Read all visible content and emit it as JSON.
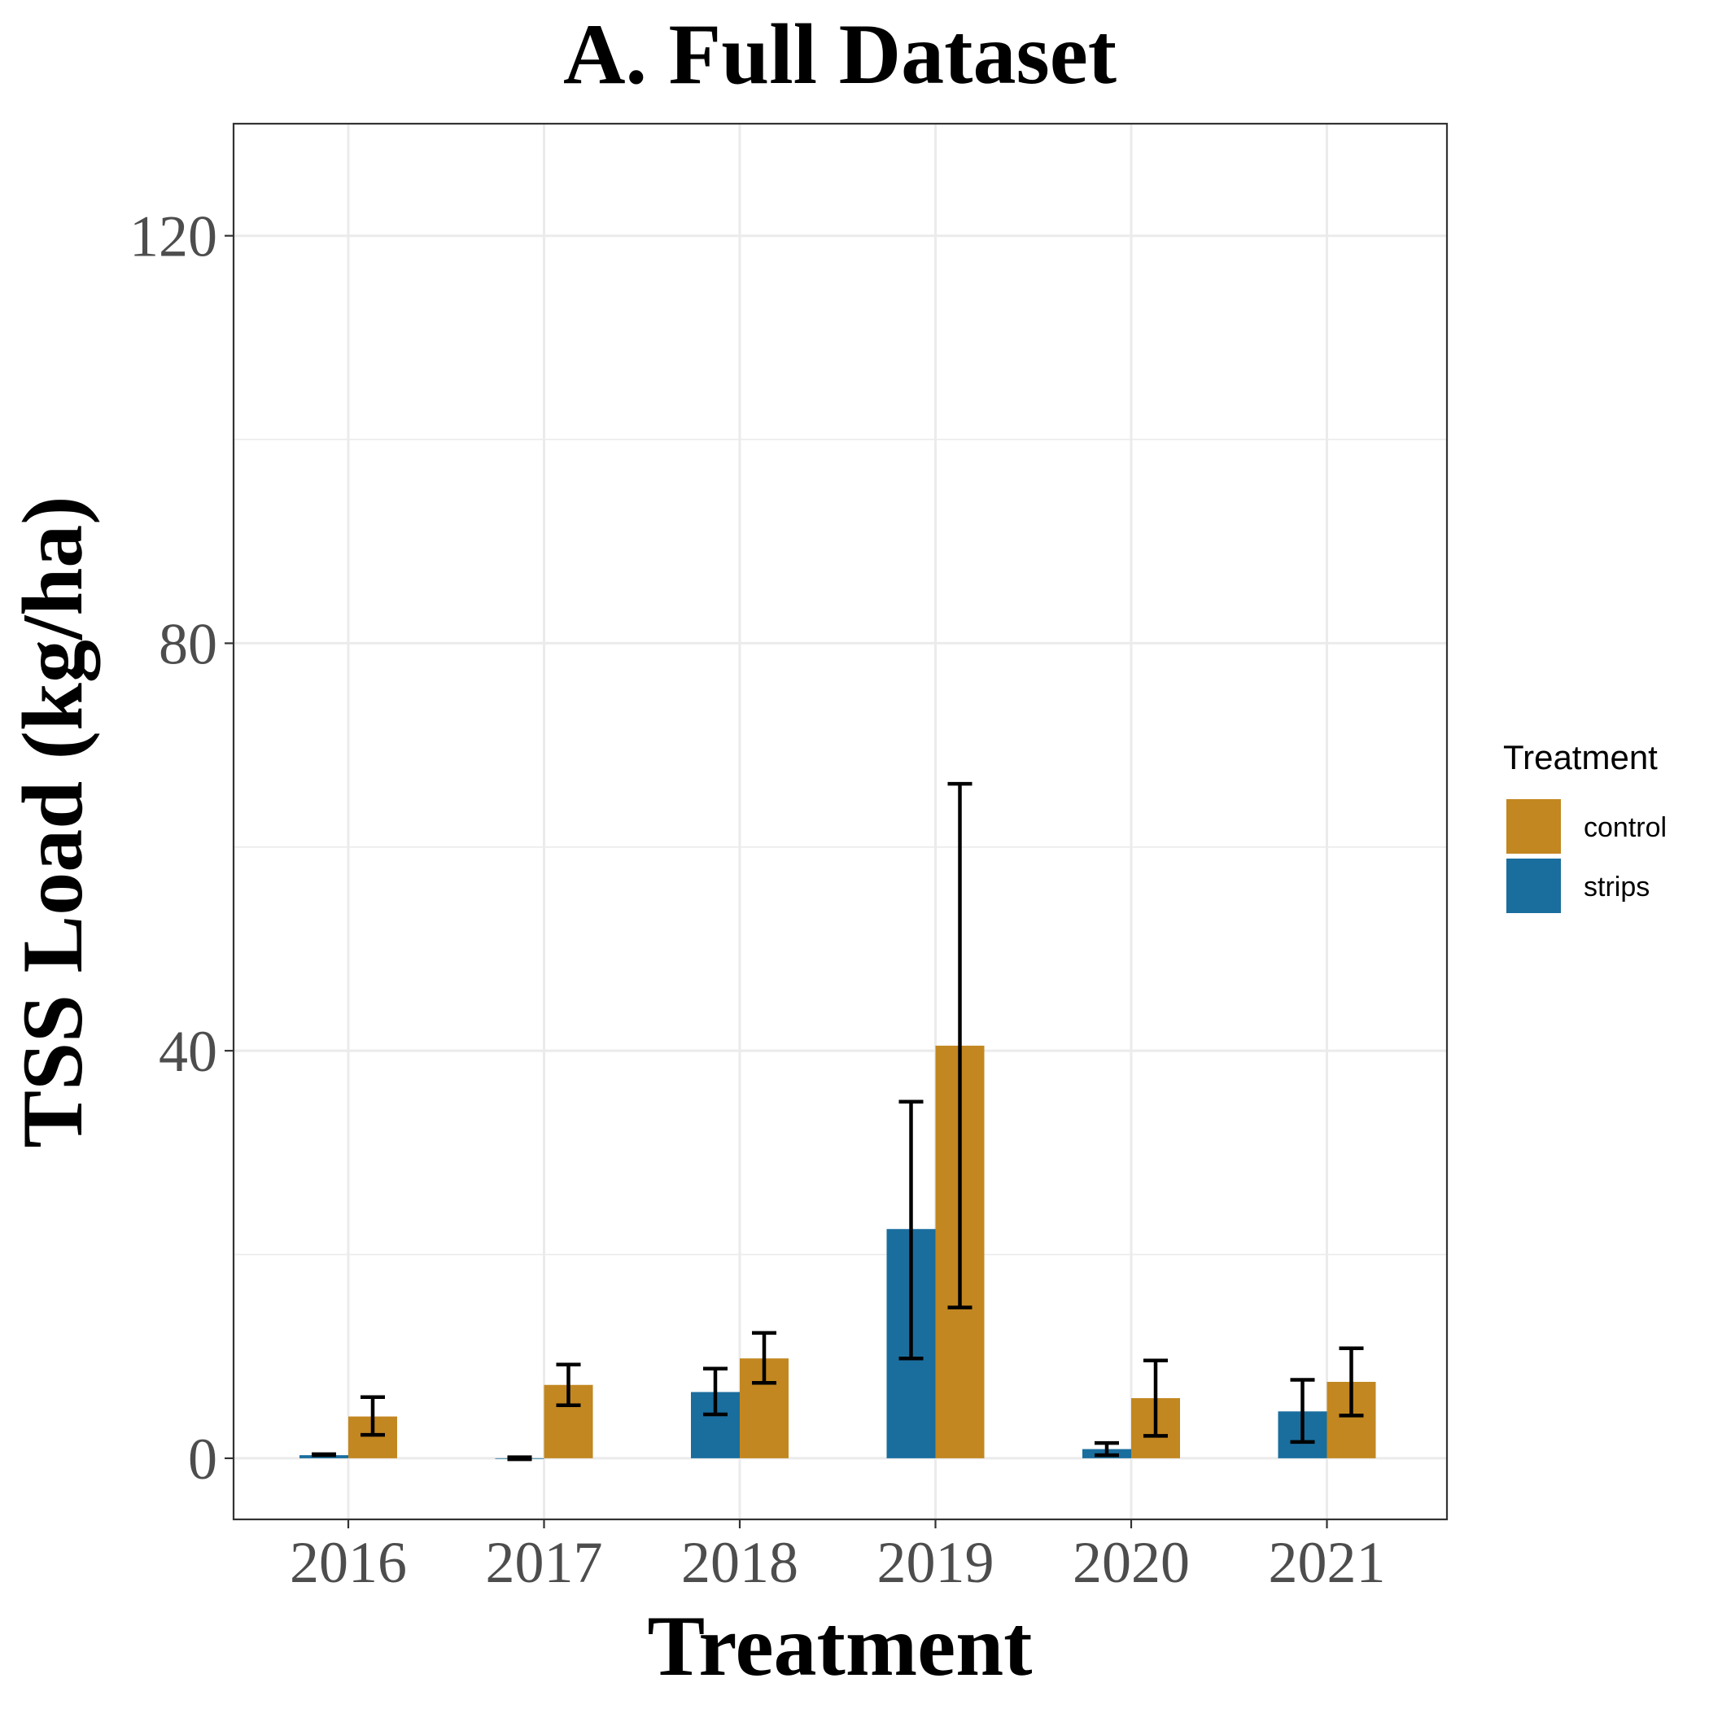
{
  "chart_data": {
    "type": "bar",
    "title": "A. Full Dataset",
    "xlabel": "Treatment",
    "ylabel": "TSS Load (kg/ha)",
    "categories": [
      "2016",
      "2017",
      "2018",
      "2019",
      "2020",
      "2021"
    ],
    "yticks": [
      "0",
      "40",
      "80",
      "120"
    ],
    "ylim": [
      -6,
      131
    ],
    "grid": true,
    "legend": {
      "title": "Treatment",
      "position": "right"
    },
    "series": [
      {
        "name": "strips",
        "color": "#1a6e9e",
        "values": [
          0.3,
          0.0,
          6.5,
          22.5,
          0.9,
          4.6
        ],
        "error_low": [
          0.3,
          -0.1,
          4.3,
          9.8,
          0.3,
          1.6
        ],
        "error_high": [
          0.4,
          0.1,
          8.8,
          35.0,
          1.5,
          7.7
        ]
      },
      {
        "name": "control",
        "color": "#c28720",
        "values": [
          4.1,
          7.2,
          9.8,
          40.5,
          5.9,
          7.5
        ],
        "error_low": [
          2.3,
          5.2,
          7.4,
          14.8,
          2.2,
          4.2
        ],
        "error_high": [
          6.0,
          9.2,
          12.3,
          66.2,
          9.6,
          10.8
        ]
      }
    ]
  }
}
